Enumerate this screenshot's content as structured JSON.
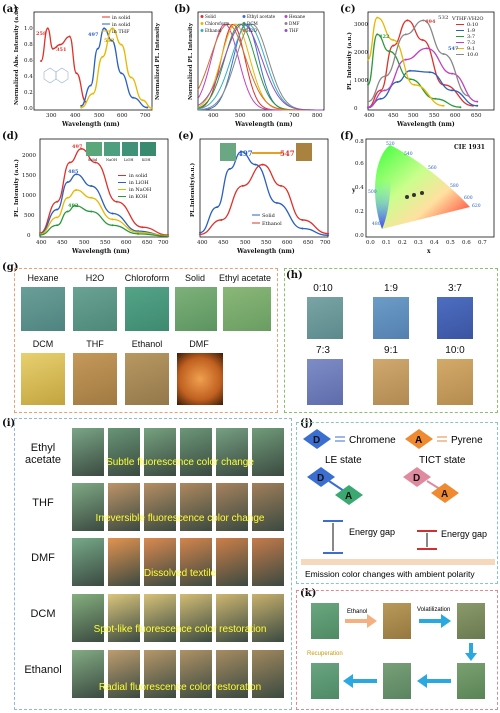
{
  "panels": {
    "a": {
      "label": "(a)",
      "xlabel": "Wavelength (nm)",
      "ylabel": "Normalized Abs. Intensity (a.u.)",
      "ylabel2": "Normalized PL. Intensity",
      "legend": [
        "in solid",
        "in solid",
        "in THF"
      ],
      "peaks": {
        "p1": "258",
        "p2": "351",
        "p3": "497",
        "p4": "532"
      }
    },
    "b": {
      "label": "(b)",
      "xlabel": "Wavelength (nm)",
      "ylabel": "Normalized PL. Intensity",
      "legend": [
        "Solid",
        "Ethyl acetate",
        "Hexane",
        "Chloroform",
        "DCM",
        "DMF",
        "Ethanol",
        "H2O",
        "THF"
      ]
    },
    "c": {
      "label": "(c)",
      "xlabel": "Wavelength (nm)",
      "ylabel": "PL. Intensity (a.u.)",
      "legend_title": "VTHF:VH2O",
      "legend": [
        "0:10",
        "1:9",
        "3:7",
        "7:3",
        "9:1",
        "10:0"
      ],
      "peaks": {
        "p1": "422",
        "p2": "494",
        "p3": "532",
        "p4": "547",
        "p5": "422"
      }
    },
    "d": {
      "label": "(d)",
      "xlabel": "Wavelength (nm)",
      "ylabel": "PL. Intensity (a.u.)",
      "legend": [
        "in solid",
        "in LiOH",
        "in NaOH",
        "in KOH"
      ],
      "inset_labels": [
        "Solid",
        "NaOH",
        "LiOH",
        "KOH"
      ],
      "peaks": {
        "p1": "497",
        "p2": "485",
        "p3": "482"
      }
    },
    "e": {
      "label": "(e)",
      "xlabel": "Wavelength (nm)",
      "ylabel": "PL.Intensity(a.u.)",
      "legend": [
        "Solid",
        "Ethanol"
      ],
      "peaks": {
        "p1": "497",
        "p2": "547"
      }
    },
    "f": {
      "label": "(f)",
      "title": "CIE 1931",
      "xlabel": "x",
      "ylabel": "y",
      "wl_labels": [
        "520",
        "540",
        "560",
        "580",
        "600",
        "620",
        "500",
        "480"
      ]
    },
    "g": {
      "label": "(g)",
      "row1": [
        "Hexane",
        "H2O",
        "Chloroform",
        "Solid",
        "Ethyl acetate"
      ],
      "row2": [
        "DCM",
        "THF",
        "Ethanol",
        "DMF"
      ]
    },
    "h": {
      "label": "(h)",
      "row1": [
        "0:10",
        "1:9",
        "3:7"
      ],
      "row2": [
        "7:3",
        "9:1",
        "10:0"
      ]
    },
    "i": {
      "label": "(i)",
      "rows": [
        {
          "name": "Ethyl acetate",
          "caption": "Subtle fluorescence color change"
        },
        {
          "name": "THF",
          "caption": "Irreversible fluorescence color change"
        },
        {
          "name": "DMF",
          "caption": "Dissolved textile"
        },
        {
          "name": "DCM",
          "caption": "Spot-like fluorescence color restoration"
        },
        {
          "name": "Ethanol",
          "caption": "Radial fluorescence color restoration"
        }
      ]
    },
    "j": {
      "label": "(j)",
      "d_label": "D",
      "d_text": "Chromene",
      "a_label": "A",
      "a_text": "Pyrene",
      "le": "LE state",
      "tict": "TICT state",
      "gap": "Energy gap",
      "bottom": "Emission color changes with ambient polarity"
    },
    "k": {
      "label": "(k)",
      "ethanol": "Ethanol",
      "volatilization": "Volatilization",
      "recuperation": "Recuperation"
    }
  },
  "chart_data": [
    {
      "type": "line",
      "panel": "a",
      "xlabel": "Wavelength (nm)",
      "xlim": [
        200,
        700
      ],
      "ylim": [
        0,
        1.2
      ],
      "series": [
        {
          "name": "in solid",
          "x": [
            230,
            258,
            280,
            310,
            351,
            380,
            420
          ],
          "values": [
            0.6,
            1.0,
            0.75,
            0.8,
            0.9,
            0.45,
            0.1
          ]
        },
        {
          "name": "in solid",
          "x": [
            400,
            440,
            470,
            497,
            530,
            570,
            620,
            680
          ],
          "values": [
            0.05,
            0.3,
            0.75,
            1.0,
            0.85,
            0.45,
            0.15,
            0.03
          ]
        },
        {
          "name": "in THF",
          "x": [
            400,
            450,
            490,
            532,
            570,
            610,
            660,
            700
          ],
          "values": [
            0.03,
            0.2,
            0.65,
            1.0,
            0.8,
            0.4,
            0.12,
            0.02
          ]
        }
      ]
    },
    {
      "type": "line",
      "panel": "c",
      "xlabel": "Wavelength (nm)",
      "ylabel": "PL. Intensity (a.u.)",
      "xlim": [
        400,
        700
      ],
      "ylim": [
        0,
        3500
      ],
      "series": [
        {
          "name": "0:10",
          "x": [
            400,
            430,
            460,
            494,
            530,
            580,
            650
          ],
          "values": [
            100,
            700,
            2300,
            3200,
            2500,
            900,
            150
          ]
        },
        {
          "name": "1:9",
          "x": [
            400,
            430,
            470,
            500,
            547,
            600,
            660
          ],
          "values": [
            80,
            400,
            1000,
            1400,
            1350,
            700,
            150
          ]
        },
        {
          "name": "3:7",
          "x": [
            400,
            422,
            450,
            500,
            560,
            620
          ],
          "values": [
            900,
            2700,
            2100,
            1100,
            400,
            100
          ]
        },
        {
          "name": "7:3",
          "x": [
            400,
            440,
            490,
            540,
            600,
            660
          ],
          "values": [
            100,
            700,
            1800,
            2200,
            1300,
            300
          ]
        },
        {
          "name": "9:1",
          "x": [
            400,
            422,
            460,
            510,
            580
          ],
          "values": [
            1800,
            3300,
            2500,
            900,
            150
          ]
        },
        {
          "name": "10:0",
          "x": [
            400,
            440,
            490,
            532,
            580,
            640
          ],
          "values": [
            300,
            1200,
            2700,
            3200,
            2000,
            500
          ]
        }
      ]
    },
    {
      "type": "line",
      "panel": "d",
      "xlabel": "Wavelength (nm)",
      "ylabel": "PL. Intensity (a.u.)",
      "xlim": [
        400,
        700
      ],
      "ylim": [
        0,
        2500
      ],
      "series": [
        {
          "name": "in solid",
          "x": [
            400,
            440,
            470,
            497,
            530,
            580,
            640,
            700
          ],
          "values": [
            100,
            900,
            1900,
            2250,
            1900,
            900,
            250,
            50
          ]
        },
        {
          "name": "in LiOH",
          "x": [
            400,
            440,
            465,
            485,
            520,
            570,
            630,
            700
          ],
          "values": [
            80,
            700,
            1400,
            1600,
            1300,
            600,
            150,
            30
          ]
        },
        {
          "name": "in NaOH",
          "x": [
            400,
            440,
            465,
            485,
            520,
            570,
            630,
            700
          ],
          "values": [
            70,
            500,
            1000,
            1200,
            1000,
            450,
            120,
            30
          ]
        },
        {
          "name": "in KOH",
          "x": [
            400,
            440,
            465,
            482,
            520,
            570,
            630,
            700
          ],
          "values": [
            50,
            300,
            650,
            800,
            650,
            300,
            80,
            20
          ]
        }
      ]
    },
    {
      "type": "line",
      "panel": "e",
      "xlabel": "Wavelength (nm)",
      "xlim": [
        400,
        700
      ],
      "series": [
        {
          "name": "Solid",
          "x": [
            400,
            440,
            470,
            497,
            530,
            580,
            640,
            700
          ],
          "values": [
            0.05,
            0.35,
            0.8,
            1.0,
            0.85,
            0.4,
            0.1,
            0.02
          ]
        },
        {
          "name": "Ethanol",
          "x": [
            400,
            450,
            500,
            547,
            590,
            640,
            700
          ],
          "values": [
            0.03,
            0.2,
            0.6,
            0.85,
            0.6,
            0.2,
            0.04
          ]
        }
      ]
    }
  ]
}
